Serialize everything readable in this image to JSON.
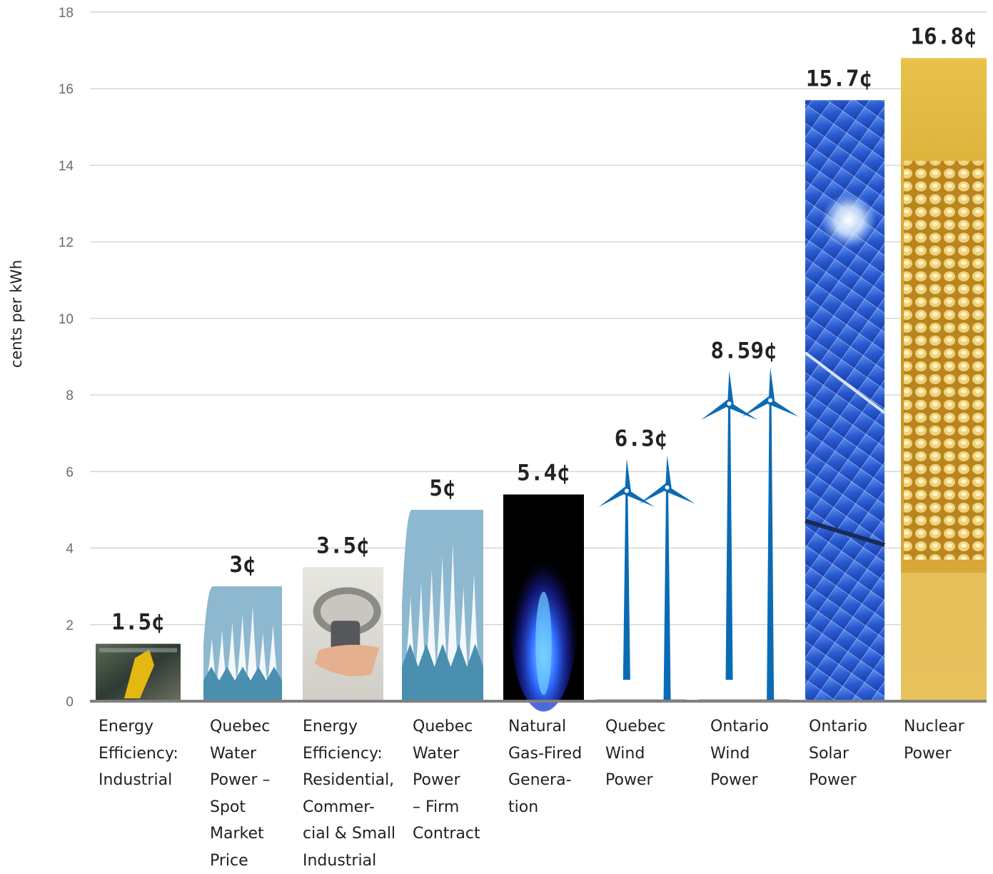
{
  "chart_data": {
    "type": "bar",
    "ylabel": "cents per kWh",
    "ylim": [
      0,
      18
    ],
    "yticks": [
      0,
      2,
      4,
      6,
      8,
      10,
      12,
      14,
      16,
      18
    ],
    "grid": true,
    "categories": [
      "Energy Efficiency: Industrial",
      "Quebec Water Power – Spot Market Price",
      "Energy Efficiency: Residential, Commercial & Small Industrial",
      "Quebec Water Power – Firm Contract",
      "Natural Gas-Fired Generation",
      "Quebec Wind Power",
      "Ontario Wind Power",
      "Ontario Solar Power",
      "Nuclear Power"
    ],
    "category_lines": [
      [
        "Energy",
        "Efficiency:",
        "Industrial"
      ],
      [
        "Quebec",
        "Water",
        "Power –",
        "Spot",
        "Market",
        "Price"
      ],
      [
        "Energy",
        "Efficiency:",
        "Residential,",
        "Commer-",
        "cial & Small",
        "Industrial"
      ],
      [
        "Quebec",
        "Water",
        "Power",
        "– Firm",
        "Contract"
      ],
      [
        "Natural",
        "Gas-Fired",
        "Genera-",
        "tion"
      ],
      [
        "Quebec",
        "Wind",
        "Power"
      ],
      [
        "Ontario",
        "Wind",
        "Power"
      ],
      [
        "Ontario",
        "Solar",
        "Power"
      ],
      [
        "Nuclear",
        "Power"
      ]
    ],
    "values": [
      1.5,
      3,
      3.5,
      5,
      5.4,
      6.3,
      8.59,
      15.7,
      16.8
    ],
    "value_labels": [
      "1.5¢",
      "3¢",
      "3.5¢",
      "5¢",
      "5.4¢",
      "6.3¢",
      "8.59¢",
      "15.7¢",
      "16.8¢"
    ],
    "bar_styles": [
      "industrial",
      "water",
      "bulb",
      "water",
      "flame",
      "wind",
      "wind",
      "solar",
      "nuclear"
    ]
  },
  "colors": {
    "water": "#8db8cf",
    "water_dark": "#4a8fb0",
    "wind": "#0a6bb5",
    "flame": "#2f5fff",
    "solar": "#2d5fd6",
    "nuclear": "#d9a520",
    "grid": "#d6d6d6",
    "axis": "#808080"
  }
}
